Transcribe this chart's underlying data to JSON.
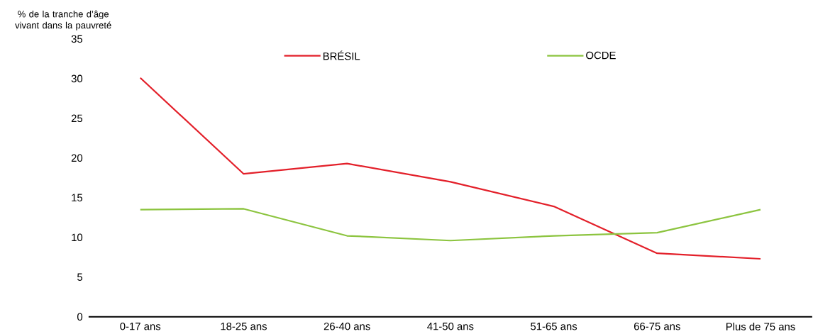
{
  "chart_data": {
    "type": "line",
    "ylabel": "% de la tranche d’âge vivant dans la pauvreté",
    "categories": [
      "0-17 ans",
      "18-25 ans",
      "26-40 ans",
      "41-50 ans",
      "51-65 ans",
      "66-75 ans",
      "Plus de 75 ans"
    ],
    "series": [
      {
        "name": "BRÉSIL",
        "color": "#e3202a",
        "values": [
          30.1,
          18.0,
          19.3,
          17.0,
          13.9,
          8.0,
          7.3
        ]
      },
      {
        "name": "OCDE",
        "color": "#8cc43f",
        "values": [
          13.5,
          13.6,
          10.2,
          9.6,
          10.2,
          10.6,
          13.5
        ]
      }
    ],
    "ylim": [
      0,
      35
    ],
    "yticks": [
      0,
      5,
      10,
      15,
      20,
      25,
      30,
      35
    ],
    "grid": false,
    "legend": "top",
    "marker": "none",
    "line_style": "solid"
  }
}
